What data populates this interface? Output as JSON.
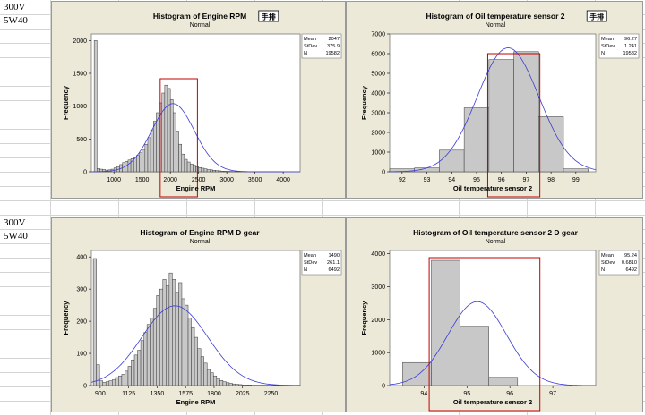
{
  "sheet": {
    "row_labels_top": [
      "300V",
      "5W40"
    ],
    "row_labels_bottom": [
      "300V",
      "5W40"
    ]
  },
  "chart_data": [
    {
      "type": "bar",
      "title": "Histogram of Engine RPM",
      "subtitle": "Normal",
      "tag": "手排",
      "xlabel": "Engine RPM",
      "ylabel": "Frequency",
      "xlim": [
        600,
        4300
      ],
      "ylim": [
        0,
        2100
      ],
      "xticks": [
        1000,
        1500,
        2000,
        2500,
        3000,
        3500,
        4000
      ],
      "yticks": [
        0,
        500,
        1000,
        1500,
        2000
      ],
      "bin_start": 650,
      "bin_width": 50,
      "values": [
        2000,
        50,
        40,
        35,
        25,
        30,
        40,
        60,
        80,
        110,
        140,
        160,
        180,
        200,
        220,
        250,
        290,
        340,
        420,
        520,
        640,
        770,
        900,
        1050,
        1200,
        1320,
        1270,
        1100,
        900,
        620,
        420,
        270,
        190,
        150,
        120,
        100,
        80,
        65,
        55,
        45,
        35,
        30,
        24,
        18,
        14,
        10,
        8,
        6,
        5,
        4,
        3,
        3,
        2,
        2,
        2,
        1,
        1,
        1,
        1,
        1,
        1,
        1,
        1,
        1,
        1,
        1,
        1
      ],
      "fit": {
        "mean": 2047,
        "sd": 375.9
      },
      "stats": [
        {
          "label": "Mean",
          "value": "2047"
        },
        {
          "label": "StDev",
          "value": "375.9"
        },
        {
          "label": "N",
          "value": "19582"
        }
      ],
      "highlight": [
        1820,
        2480
      ],
      "grid": false,
      "legend_position": "top-right"
    },
    {
      "type": "bar",
      "title": "Histogram of Oil temperature sensor 2",
      "subtitle": "Normal",
      "tag": "手排",
      "xlabel": "Oil temperature sensor 2",
      "ylabel": "Frequency",
      "xlim": [
        91.5,
        99.8
      ],
      "ylim": [
        0,
        7000
      ],
      "xticks": [
        92,
        93,
        94,
        95,
        96,
        97,
        98,
        99
      ],
      "yticks": [
        0,
        1000,
        2000,
        3000,
        4000,
        5000,
        6000,
        7000
      ],
      "bin_start": 91.5,
      "bin_width": 1,
      "values": [
        150,
        200,
        1100,
        3250,
        5700,
        6100,
        2800,
        150
      ],
      "fit": {
        "mean": 96.27,
        "sd": 1.241
      },
      "stats": [
        {
          "label": "Mean",
          "value": "96.27"
        },
        {
          "label": "StDev",
          "value": "1.241"
        },
        {
          "label": "N",
          "value": "19582"
        }
      ],
      "highlight": [
        95.45,
        97.55
      ],
      "grid": false,
      "legend_position": "top-right"
    },
    {
      "type": "bar",
      "title": "Histogram of Engine RPM D gear",
      "subtitle": "Normal",
      "tag": "",
      "xlabel": "Engine RPM",
      "ylabel": "Frequency",
      "xlim": [
        830,
        2480
      ],
      "ylim": [
        0,
        420
      ],
      "xticks": [
        900,
        1125,
        1350,
        1575,
        1800,
        2025,
        2250
      ],
      "yticks": [
        0,
        100,
        200,
        300,
        400
      ],
      "bin_start": 845,
      "bin_width": 25,
      "values": [
        395,
        65,
        15,
        10,
        12,
        15,
        18,
        25,
        30,
        35,
        45,
        60,
        80,
        95,
        110,
        140,
        165,
        190,
        210,
        240,
        280,
        300,
        330,
        310,
        350,
        330,
        290,
        320,
        270,
        250,
        210,
        180,
        150,
        115,
        90,
        70,
        50,
        40,
        30,
        22,
        16,
        12,
        9,
        7,
        5,
        4,
        3,
        2,
        2,
        2,
        1,
        1,
        1,
        1,
        1,
        1,
        1,
        1,
        1,
        1,
        1,
        1,
        1,
        1,
        1,
        1
      ],
      "fit": {
        "mean": 1490,
        "sd": 261.1
      },
      "stats": [
        {
          "label": "Mean",
          "value": "1490"
        },
        {
          "label": "StDev",
          "value": "261.1"
        },
        {
          "label": "N",
          "value": "6492"
        }
      ],
      "highlight": null,
      "grid": false,
      "legend_position": "top-right"
    },
    {
      "type": "bar",
      "title": "Histogram of Oil temperature sensor 2 D gear",
      "subtitle": "Normal",
      "tag": "",
      "xlabel": "Oil temperature sensor 2",
      "ylabel": "Frequency",
      "xlim": [
        93.2,
        98.0
      ],
      "ylim": [
        0,
        4100
      ],
      "xticks": [
        94,
        95,
        96,
        97
      ],
      "yticks": [
        0,
        1000,
        2000,
        3000,
        4000
      ],
      "bin_start": 93.5,
      "bin_width": 0.67,
      "values": [
        700,
        3800,
        1800,
        250
      ],
      "fit": {
        "mean": 95.24,
        "sd": 0.681
      },
      "stats": [
        {
          "label": "Mean",
          "value": "95.24"
        },
        {
          "label": "StDev",
          "value": "0.6810"
        },
        {
          "label": "N",
          "value": "6492"
        }
      ],
      "highlight": [
        94.12,
        96.7
      ],
      "grid": false,
      "legend_position": "top-right"
    }
  ]
}
